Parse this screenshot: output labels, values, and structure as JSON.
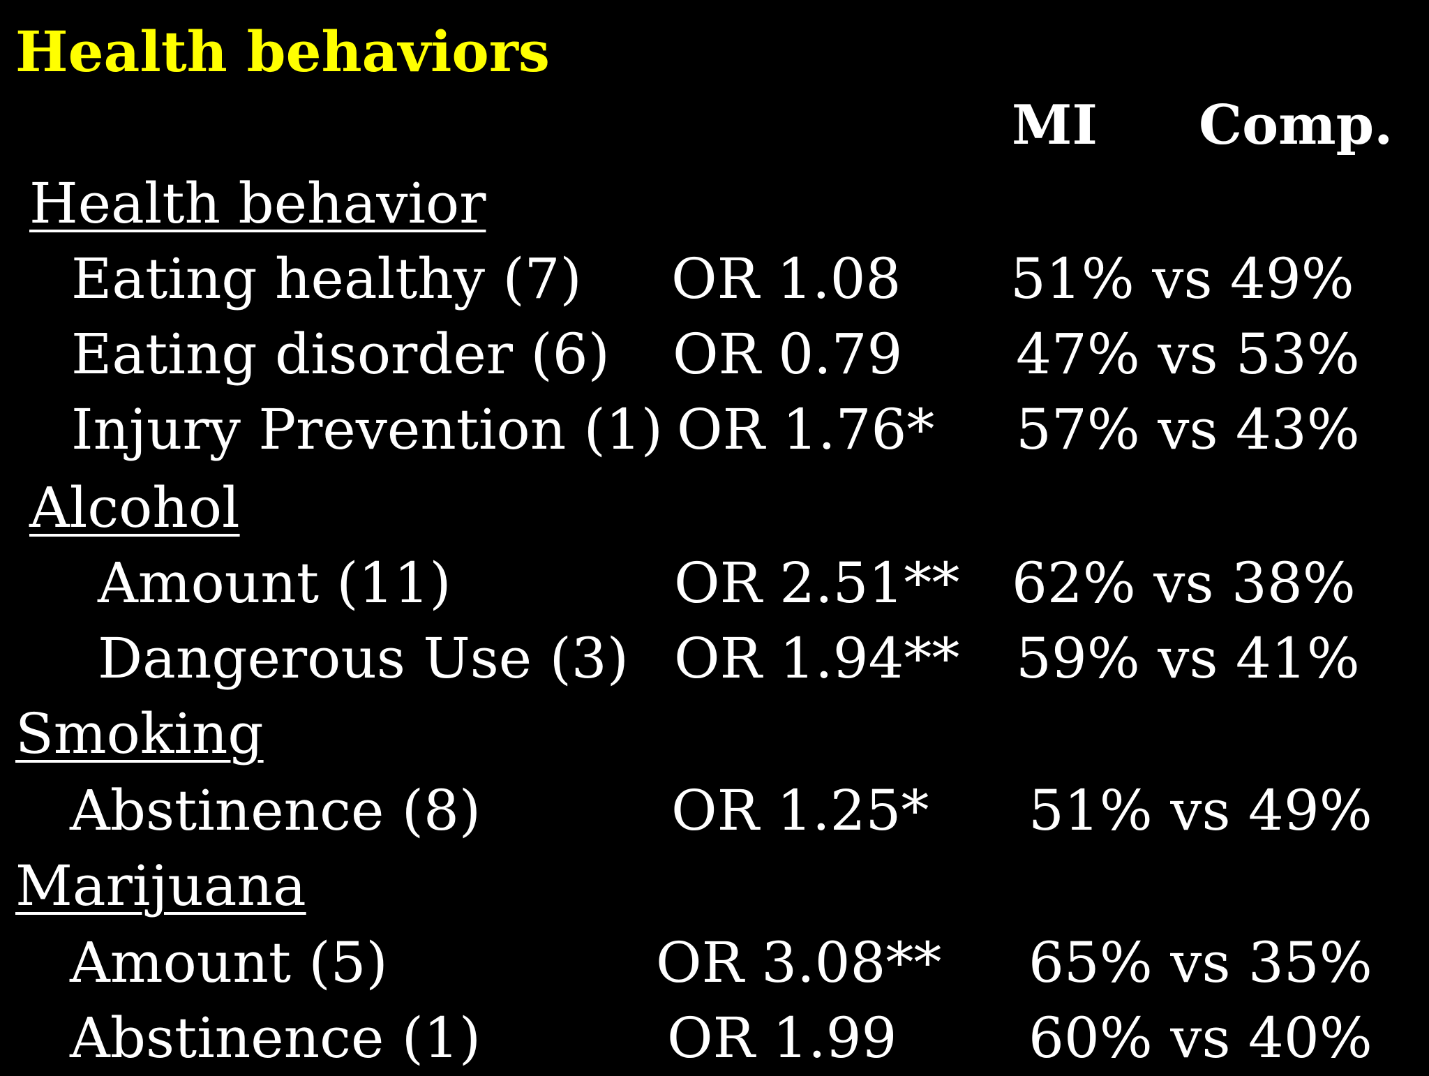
{
  "slide": {
    "title": "Health behaviors",
    "column_headers": {
      "mi": "MI",
      "comp": "Comp."
    },
    "rows": [
      {
        "type": "section",
        "label": "Health behavior"
      },
      {
        "type": "item",
        "label": "Eating healthy (7)",
        "or": "OR  1.08",
        "pct": "51% vs 49%"
      },
      {
        "type": "item",
        "label": "Eating disorder  (6)",
        "or": "OR  0.79",
        "pct": "47% vs 53%"
      },
      {
        "type": "item",
        "label": "Injury Prevention (1)",
        "or": "OR  1.76*",
        "pct": "57% vs 43%"
      },
      {
        "type": "section",
        "label": "Alcohol"
      },
      {
        "type": "item",
        "label": "Amount (11)",
        "or": "OR  2.51**",
        "pct": "62% vs 38%"
      },
      {
        "type": "item",
        "label": "Dangerous Use (3)",
        "or": "OR 1.94**",
        "pct": "59% vs 41%"
      },
      {
        "type": "section",
        "label": "Smoking"
      },
      {
        "type": "item",
        "label": "Abstinence (8)",
        "or": "OR  1.25*",
        "pct": "51% vs 49%"
      },
      {
        "type": "section",
        "label": "Marijuana"
      },
      {
        "type": "item",
        "label": "Amount (5)",
        "or": "OR   3.08**",
        "pct": "65% vs 35%"
      },
      {
        "type": "item",
        "label": "Abstinence     (1)",
        "or": "OR   1.99",
        "pct": "60%  vs 40%"
      }
    ]
  }
}
